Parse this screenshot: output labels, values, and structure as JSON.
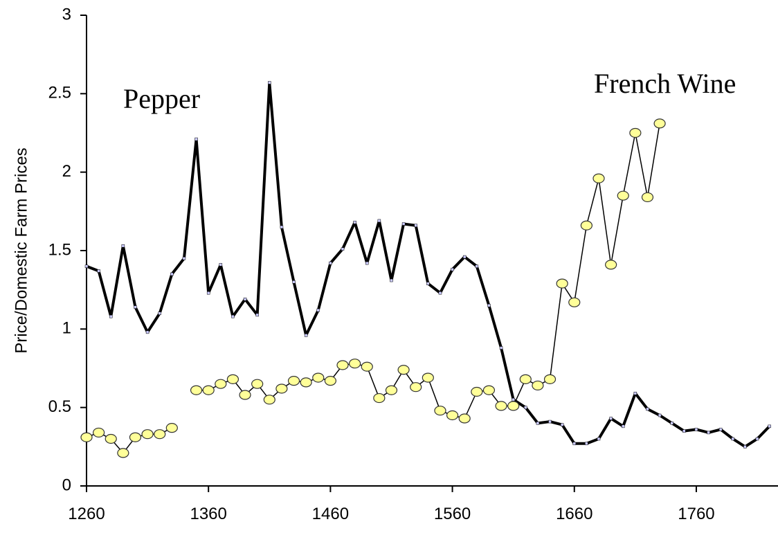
{
  "chart_data": {
    "type": "line",
    "y_label": "Price/Domestic Farm Prices",
    "annotations": [
      "Pepper",
      "French Wine"
    ],
    "x": [
      1260,
      1270,
      1280,
      1290,
      1300,
      1310,
      1320,
      1330,
      1340,
      1350,
      1360,
      1370,
      1380,
      1390,
      1400,
      1410,
      1420,
      1430,
      1440,
      1450,
      1460,
      1470,
      1480,
      1490,
      1500,
      1510,
      1520,
      1530,
      1540,
      1550,
      1560,
      1570,
      1580,
      1590,
      1600,
      1610,
      1620,
      1630,
      1640,
      1650,
      1660,
      1670,
      1680,
      1690,
      1700,
      1710,
      1720,
      1730,
      1740,
      1750,
      1760,
      1770,
      1780,
      1790,
      1800,
      1810,
      1820
    ],
    "series": [
      {
        "name": "Pepper",
        "color": "#000000",
        "values": [
          1.4,
          1.37,
          1.08,
          1.53,
          1.14,
          0.98,
          1.1,
          1.35,
          1.45,
          2.21,
          1.23,
          1.41,
          1.08,
          1.19,
          1.09,
          2.57,
          1.65,
          1.3,
          0.96,
          1.12,
          1.42,
          1.51,
          1.68,
          1.42,
          1.69,
          1.31,
          1.67,
          1.66,
          1.29,
          1.23,
          1.38,
          1.46,
          1.4,
          1.15,
          0.88,
          0.55,
          0.5,
          0.4,
          0.41,
          0.39,
          0.27,
          0.27,
          0.3,
          0.43,
          0.38,
          0.59,
          0.49,
          0.45,
          0.4,
          0.35,
          0.36,
          0.34,
          0.36,
          0.3,
          0.25,
          0.3,
          0.38
        ]
      },
      {
        "name": "French Wine",
        "color": "#ffff99",
        "values": [
          0.31,
          0.34,
          0.3,
          0.21,
          0.31,
          0.33,
          0.33,
          0.37,
          null,
          0.61,
          0.61,
          0.65,
          0.68,
          0.58,
          0.65,
          0.55,
          0.62,
          0.67,
          0.66,
          0.69,
          0.67,
          0.77,
          0.78,
          0.76,
          0.56,
          0.61,
          0.74,
          0.63,
          0.69,
          0.48,
          0.45,
          0.43,
          0.6,
          0.61,
          0.51,
          0.51,
          0.68,
          0.64,
          0.68,
          1.29,
          1.17,
          1.66,
          1.96,
          1.41,
          1.85,
          2.25,
          1.84,
          2.31,
          null,
          null,
          null,
          null,
          null,
          null,
          null,
          null,
          null
        ]
      }
    ],
    "xlim": [
      1260,
      1827
    ],
    "xticks": [
      1260,
      1360,
      1460,
      1560,
      1660,
      1760
    ],
    "ylim": [
      0,
      3
    ],
    "yticks": [
      0,
      0.5,
      1,
      1.5,
      2,
      2.5,
      3
    ],
    "grid": false
  }
}
